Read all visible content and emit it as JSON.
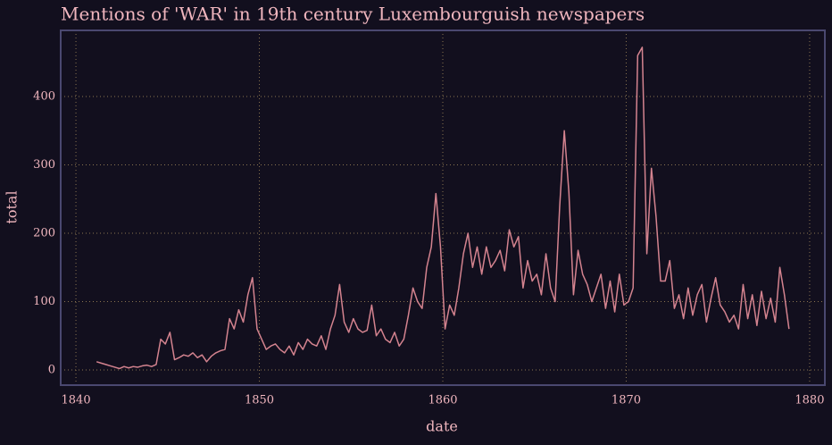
{
  "chart_data": {
    "type": "line",
    "title": "Mentions of 'WAR' in 19th century Luxembourguish newspapers",
    "x_label": "date",
    "y_label": "total",
    "x": [
      1841.125,
      1841.375,
      1841.625,
      1841.875,
      1842.125,
      1842.375,
      1842.625,
      1842.875,
      1843.125,
      1843.375,
      1843.625,
      1843.875,
      1844.125,
      1844.375,
      1844.625,
      1844.875,
      1845.125,
      1845.375,
      1845.625,
      1845.875,
      1846.125,
      1846.375,
      1846.625,
      1846.875,
      1847.125,
      1847.375,
      1847.625,
      1847.875,
      1848.125,
      1848.375,
      1848.625,
      1848.875,
      1849.125,
      1849.375,
      1849.625,
      1849.875,
      1850.125,
      1850.375,
      1850.625,
      1850.875,
      1851.125,
      1851.375,
      1851.625,
      1851.875,
      1852.125,
      1852.375,
      1852.625,
      1852.875,
      1853.125,
      1853.375,
      1853.625,
      1853.875,
      1854.125,
      1854.375,
      1854.625,
      1854.875,
      1855.125,
      1855.375,
      1855.625,
      1855.875,
      1856.125,
      1856.375,
      1856.625,
      1856.875,
      1857.125,
      1857.375,
      1857.625,
      1857.875,
      1858.125,
      1858.375,
      1858.625,
      1858.875,
      1859.125,
      1859.375,
      1859.625,
      1859.875,
      1860.125,
      1860.375,
      1860.625,
      1860.875,
      1861.125,
      1861.375,
      1861.625,
      1861.875,
      1862.125,
      1862.375,
      1862.625,
      1862.875,
      1863.125,
      1863.375,
      1863.625,
      1863.875,
      1864.125,
      1864.375,
      1864.625,
      1864.875,
      1865.125,
      1865.375,
      1865.625,
      1865.875,
      1866.125,
      1866.375,
      1866.625,
      1866.875,
      1867.125,
      1867.375,
      1867.625,
      1867.875,
      1868.125,
      1868.375,
      1868.625,
      1868.875,
      1869.125,
      1869.375,
      1869.625,
      1869.875,
      1870.125,
      1870.375,
      1870.625,
      1870.875,
      1871.125,
      1871.375,
      1871.625,
      1871.875,
      1872.125,
      1872.375,
      1872.625,
      1872.875,
      1873.125,
      1873.375,
      1873.625,
      1873.875,
      1874.125,
      1874.375,
      1874.625,
      1874.875,
      1875.125,
      1875.375,
      1875.625,
      1875.875,
      1876.125,
      1876.375,
      1876.625,
      1876.875,
      1877.125,
      1877.375,
      1877.625,
      1877.875,
      1878.125,
      1878.375,
      1878.625,
      1878.875
    ],
    "series": [
      {
        "color": "#d4838f",
        "values": [
          12,
          10,
          8,
          6,
          4,
          2,
          5,
          3,
          5,
          4,
          6,
          7,
          5,
          8,
          45,
          38,
          55,
          15,
          18,
          22,
          20,
          25,
          18,
          22,
          12,
          20,
          25,
          28,
          30,
          75,
          60,
          88,
          70,
          110,
          135,
          60,
          45,
          30,
          35,
          38,
          30,
          25,
          35,
          22,
          40,
          30,
          45,
          38,
          35,
          50,
          30,
          60,
          80,
          125,
          70,
          55,
          75,
          60,
          55,
          58,
          95,
          50,
          60,
          45,
          40,
          55,
          35,
          45,
          80,
          120,
          100,
          90,
          150,
          180,
          258,
          180,
          60,
          95,
          80,
          120,
          170,
          200,
          150,
          180,
          140,
          180,
          150,
          160,
          175,
          145,
          205,
          180,
          195,
          120,
          160,
          130,
          140,
          110,
          170,
          120,
          100,
          240,
          350,
          260,
          110,
          175,
          140,
          125,
          100,
          120,
          140,
          90,
          130,
          85,
          140,
          95,
          100,
          120,
          460,
          472,
          170,
          295,
          225,
          130,
          130,
          160,
          90,
          110,
          75,
          120,
          80,
          110,
          125,
          70,
          105,
          135,
          95,
          85,
          70,
          80,
          60,
          125,
          75,
          110,
          65,
          115,
          75,
          105,
          70,
          150,
          110,
          60
        ]
      }
    ],
    "xlim": [
      1839.17,
      1880.83
    ],
    "xticks": [
      1840,
      1850,
      1860,
      1870,
      1880
    ],
    "ylim": [
      -22.2,
      496.7
    ],
    "yticks": [
      0,
      100,
      200,
      300,
      400
    ],
    "grid": true
  }
}
